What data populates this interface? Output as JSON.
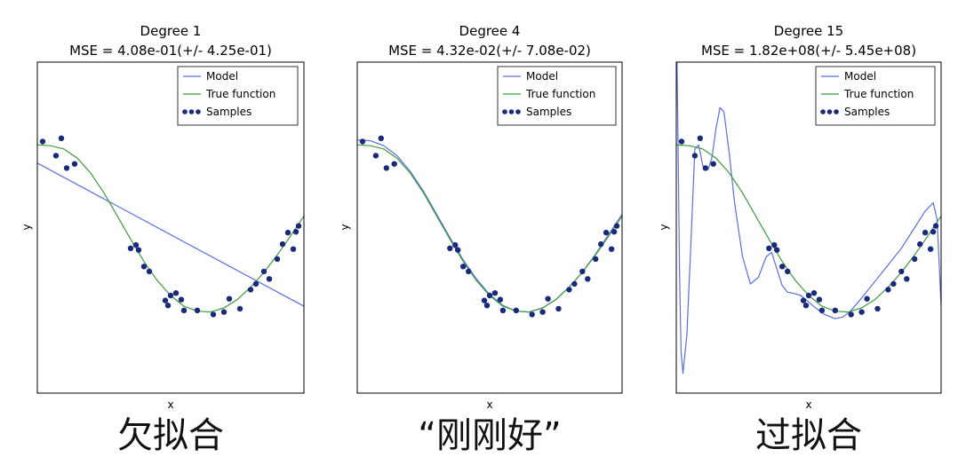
{
  "colors": {
    "model": "#5a6fe0",
    "true_function": "#3f9a3f",
    "samples": "#1a2a7a",
    "frame": "#000000"
  },
  "chart_data": [
    {
      "type": "line",
      "title": "Degree 1",
      "subtitle": "MSE = 4.08e-01(+/- 4.25e-01)",
      "xlabel": "x",
      "ylabel": "y",
      "xlim": [
        0,
        1
      ],
      "ylim": [
        -2,
        2
      ],
      "ticks_visible": false,
      "legend": {
        "position": "top-right",
        "entries": [
          "Model",
          "True function",
          "Samples"
        ]
      },
      "caption": "欠拟合",
      "model": {
        "x": [
          0,
          1
        ],
        "y": [
          0.78,
          -0.95
        ]
      }
    },
    {
      "type": "line",
      "title": "Degree 4",
      "subtitle": "MSE = 4.32e-02(+/- 7.08e-02)",
      "xlabel": "x",
      "ylabel": "y",
      "xlim": [
        0,
        1
      ],
      "ylim": [
        -2,
        2
      ],
      "ticks_visible": false,
      "legend": {
        "position": "top-right",
        "entries": [
          "Model",
          "True function",
          "Samples"
        ]
      },
      "caption": "“刚刚好”",
      "model": {
        "x": [
          0,
          0.05,
          0.1,
          0.15,
          0.2,
          0.25,
          0.3,
          0.35,
          0.4,
          0.45,
          0.5,
          0.55,
          0.6,
          0.65,
          0.7,
          0.75,
          0.8,
          0.85,
          0.9,
          0.95,
          1.0
        ],
        "y": [
          1.06,
          1.05,
          0.99,
          0.87,
          0.68,
          0.44,
          0.16,
          -0.12,
          -0.39,
          -0.62,
          -0.81,
          -0.94,
          -1.01,
          -1.02,
          -0.97,
          -0.87,
          -0.72,
          -0.54,
          -0.32,
          -0.08,
          0.16
        ]
      }
    },
    {
      "type": "line",
      "title": "Degree 15",
      "subtitle": "MSE = 1.82e+08(+/- 5.45e+08)",
      "xlabel": "x",
      "ylabel": "y",
      "xlim": [
        0,
        1
      ],
      "ylim": [
        -2,
        2
      ],
      "ticks_visible": false,
      "legend": {
        "position": "top-right",
        "entries": [
          "Model",
          "True function",
          "Samples"
        ]
      },
      "caption": "过拟合",
      "model": {
        "x": [
          0.0,
          0.006,
          0.012,
          0.018,
          0.025,
          0.04,
          0.055,
          0.07,
          0.085,
          0.1,
          0.12,
          0.135,
          0.15,
          0.165,
          0.18,
          0.2,
          0.22,
          0.25,
          0.28,
          0.31,
          0.34,
          0.36,
          0.38,
          0.4,
          0.42,
          0.45,
          0.47,
          0.5,
          0.53,
          0.56,
          0.6,
          0.63,
          0.66,
          0.7,
          0.75,
          0.8,
          0.85,
          0.9,
          0.94,
          0.97,
          0.985,
          1.0
        ],
        "y": [
          2.6,
          1.2,
          -0.5,
          -1.5,
          -1.76,
          -1.3,
          -0.2,
          0.95,
          1.0,
          0.75,
          0.7,
          0.85,
          1.2,
          1.45,
          1.4,
          0.9,
          0.3,
          -0.35,
          -0.68,
          -0.6,
          -0.35,
          -0.3,
          -0.5,
          -0.7,
          -0.78,
          -0.8,
          -0.82,
          -0.9,
          -0.98,
          -1.05,
          -1.1,
          -1.08,
          -1.0,
          -0.85,
          -0.65,
          -0.45,
          -0.25,
          0.0,
          0.2,
          0.3,
          0.1,
          -0.95
        ]
      }
    }
  ],
  "shared": {
    "true_function": {
      "x": [
        0,
        0.05,
        0.1,
        0.15,
        0.2,
        0.25,
        0.3,
        0.35,
        0.4,
        0.45,
        0.5,
        0.55,
        0.6,
        0.65,
        0.7,
        0.75,
        0.8,
        0.85,
        0.9,
        0.95,
        1.0
      ],
      "y": [
        1.0,
        0.99,
        0.95,
        0.84,
        0.66,
        0.42,
        0.14,
        -0.14,
        -0.41,
        -0.64,
        -0.82,
        -0.95,
        -1.01,
        -1.02,
        -0.97,
        -0.87,
        -0.72,
        -0.54,
        -0.33,
        -0.1,
        0.14
      ]
    },
    "samples": {
      "x": [
        0.02,
        0.07,
        0.09,
        0.11,
        0.14,
        0.35,
        0.37,
        0.38,
        0.4,
        0.42,
        0.48,
        0.49,
        0.5,
        0.52,
        0.54,
        0.55,
        0.6,
        0.66,
        0.7,
        0.72,
        0.76,
        0.8,
        0.82,
        0.85,
        0.87,
        0.9,
        0.92,
        0.94,
        0.96,
        0.97,
        0.98
      ],
      "y": [
        1.04,
        0.87,
        1.08,
        0.72,
        0.77,
        -0.25,
        -0.21,
        -0.27,
        -0.47,
        -0.53,
        -0.88,
        -0.94,
        -0.82,
        -0.79,
        -0.87,
        -1.0,
        -1.0,
        -1.05,
        -1.02,
        -0.86,
        -0.98,
        -0.75,
        -0.68,
        -0.53,
        -0.62,
        -0.38,
        -0.2,
        -0.06,
        -0.26,
        -0.05,
        0.02
      ]
    }
  }
}
